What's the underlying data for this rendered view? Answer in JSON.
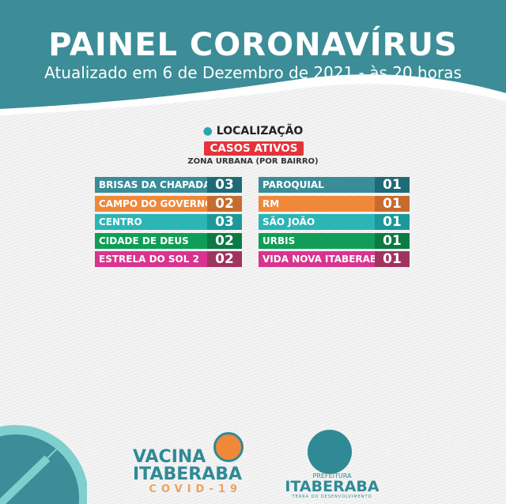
{
  "header": {
    "title": "PAINEL CORONAVÍRUS",
    "subtitle": "Atualizado em 6 de Dezembro de 2021 - às 20 horas"
  },
  "section": {
    "location_label": "LOCALIZAÇÃO",
    "badge": "CASOS ATIVOS",
    "zone": "ZONA URBANA (POR BAIRRO)"
  },
  "colors": {
    "header": "#3c8d97",
    "badge": "#e5333b"
  },
  "left": [
    {
      "name": "BRISAS DA CHAPADA",
      "value": "03",
      "color": "#3a8c99",
      "dark": "#1e6a77"
    },
    {
      "name": "CAMPO DO GOVERNO",
      "value": "02",
      "color": "#f0883a",
      "dark": "#c86b2e"
    },
    {
      "name": "CENTRO",
      "value": "03",
      "color": "#2bb5b6",
      "dark": "#1c9899"
    },
    {
      "name": "CIDADE DE DEUS",
      "value": "02",
      "color": "#119d57",
      "dark": "#0b7b43"
    },
    {
      "name": "ESTRELA DO SOL 2",
      "value": "02",
      "color": "#d8348f",
      "dark": "#a1335f"
    }
  ],
  "right": [
    {
      "name": "PAROQUIAL",
      "value": "01",
      "color": "#3a8c99",
      "dark": "#1e6a77"
    },
    {
      "name": "RM",
      "value": "01",
      "color": "#f0883a",
      "dark": "#c86b2e"
    },
    {
      "name": "SÃO JOÃO",
      "value": "01",
      "color": "#2bb5b6",
      "dark": "#1c9899"
    },
    {
      "name": "URBIS",
      "value": "01",
      "color": "#119d57",
      "dark": "#0b7b43"
    },
    {
      "name": "VIDA NOVA ITABERABA",
      "value": "01",
      "color": "#d8348f",
      "dark": "#a1335f"
    }
  ],
  "footer": {
    "vacina1": "VACINA",
    "vacina2": "ITABERABA",
    "covid": "COVID-19",
    "pref": "PREFEITURA",
    "city": "ITABERABA",
    "slogan": "TERRA DO DESENVOLVIMENTO"
  }
}
